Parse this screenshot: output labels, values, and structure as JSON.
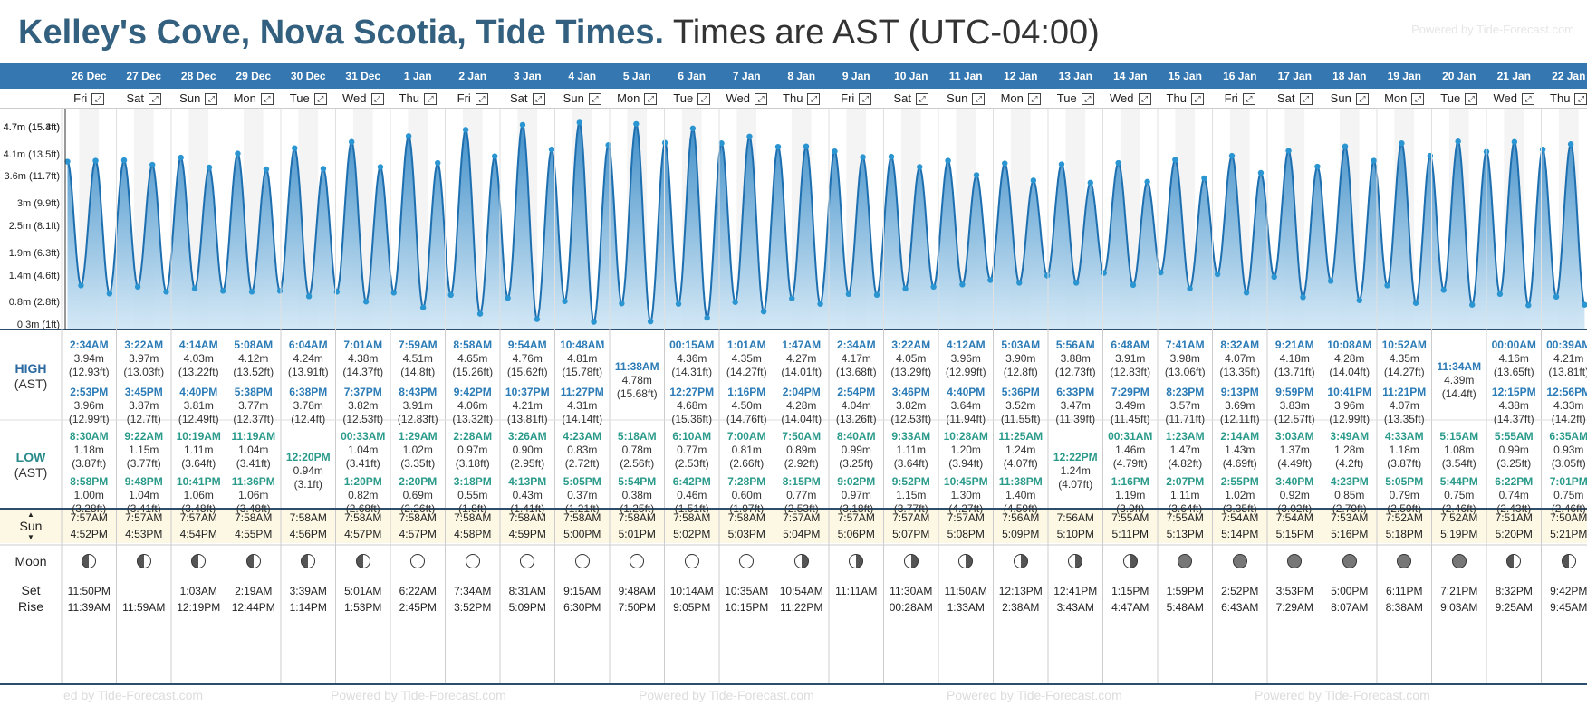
{
  "title": {
    "bold": "Kelley's Cove, Nova Scotia, Tide Times.",
    "normal": "Times are AST (UTC-04:00)"
  },
  "powered": "Powered by Tide-Forecast.com",
  "powered_bottom": "Powered by Tide-Forecast.com",
  "powered_bottom_partial": "ed by Tide-Forecast.com",
  "labels": {
    "high": "HIGH",
    "low": "LOW",
    "ast": "(AST)",
    "sun": "Sun",
    "moon": "Moon",
    "set": "Set",
    "rise": "Rise"
  },
  "colors": {
    "header_bg": "#3577b0",
    "tide_fill": "#3f8ec8",
    "tide_line": "#1d6fb0",
    "point": "#2a95d0",
    "sun_bg": "#fdf8e4",
    "title": "#34607f"
  },
  "y_axis": [
    "4.7m (15.4ft)",
    "4.7m (15.3ft)",
    "4.1m (13.5ft)",
    "3.6m (11.7ft)",
    "3m (9.9ft)",
    "2.5m (8.1ft)",
    "1.9m (6.3ft)",
    "1.4m (4.6ft)",
    "0.8m (2.8ft)",
    "0.3m (1ft)"
  ],
  "days": [
    {
      "date": "26 Dec",
      "dow": "Fri",
      "high": [
        [
          "2:34AM",
          "3.94m",
          "(12.93ft)"
        ],
        [
          "2:53PM",
          "3.96m",
          "(12.99ft)"
        ]
      ],
      "low": [
        [
          "8:30AM",
          "1.18m",
          "(3.87ft)"
        ],
        [
          "8:58PM",
          "1.00m",
          "(3.28ft)"
        ]
      ],
      "sunrise": "7:57AM",
      "sunset": "4:52PM",
      "moon_phase": "waxing",
      "moon": [
        "11:50PM",
        "11:39AM"
      ]
    },
    {
      "date": "27 Dec",
      "dow": "Sat",
      "high": [
        [
          "3:22AM",
          "3.97m",
          "(13.03ft)"
        ],
        [
          "3:45PM",
          "3.87m",
          "(12.7ft)"
        ]
      ],
      "low": [
        [
          "9:22AM",
          "1.15m",
          "(3.77ft)"
        ],
        [
          "9:48PM",
          "1.04m",
          "(3.41ft)"
        ]
      ],
      "sunrise": "7:57AM",
      "sunset": "4:53PM",
      "moon_phase": "waxing",
      "moon": [
        "",
        "11:59AM"
      ]
    },
    {
      "date": "28 Dec",
      "dow": "Sun",
      "high": [
        [
          "4:14AM",
          "4.03m",
          "(13.22ft)"
        ],
        [
          "4:40PM",
          "3.81m",
          "(12.49ft)"
        ]
      ],
      "low": [
        [
          "10:19AM",
          "1.11m",
          "(3.64ft)"
        ],
        [
          "10:41PM",
          "1.06m",
          "(3.48ft)"
        ]
      ],
      "sunrise": "7:57AM",
      "sunset": "4:54PM",
      "moon_phase": "waxing",
      "moon": [
        "1:03AM",
        "12:19PM"
      ]
    },
    {
      "date": "29 Dec",
      "dow": "Mon",
      "high": [
        [
          "5:08AM",
          "4.12m",
          "(13.52ft)"
        ],
        [
          "5:38PM",
          "3.77m",
          "(12.37ft)"
        ]
      ],
      "low": [
        [
          "11:19AM",
          "1.04m",
          "(3.41ft)"
        ],
        [
          "11:36PM",
          "1.06m",
          "(3.48ft)"
        ]
      ],
      "sunrise": "7:58AM",
      "sunset": "4:55PM",
      "moon_phase": "waxing",
      "moon": [
        "2:19AM",
        "12:44PM"
      ]
    },
    {
      "date": "30 Dec",
      "dow": "Tue",
      "high": [
        [
          "6:04AM",
          "4.24m",
          "(13.91ft)"
        ],
        [
          "6:38PM",
          "3.78m",
          "(12.4ft)"
        ]
      ],
      "low": [
        [
          "12:20PM",
          "0.94m",
          "(3.1ft)"
        ]
      ],
      "sunrise": "7:58AM",
      "sunset": "4:56PM",
      "moon_phase": "waxing",
      "moon": [
        "3:39AM",
        "1:14PM"
      ]
    },
    {
      "date": "31 Dec",
      "dow": "Wed",
      "high": [
        [
          "7:01AM",
          "4.38m",
          "(14.37ft)"
        ],
        [
          "7:37PM",
          "3.82m",
          "(12.53ft)"
        ]
      ],
      "low": [
        [
          "00:33AM",
          "1.04m",
          "(3.41ft)"
        ],
        [
          "1:20PM",
          "0.82m",
          "(2.68ft)"
        ]
      ],
      "sunrise": "7:58AM",
      "sunset": "4:57PM",
      "moon_phase": "waxing",
      "moon": [
        "5:01AM",
        "1:53PM"
      ]
    },
    {
      "date": "1 Jan",
      "dow": "Thu",
      "high": [
        [
          "7:59AM",
          "4.51m",
          "(14.8ft)"
        ],
        [
          "8:43PM",
          "3.91m",
          "(12.83ft)"
        ]
      ],
      "low": [
        [
          "1:29AM",
          "1.02m",
          "(3.35ft)"
        ],
        [
          "2:20PM",
          "0.69m",
          "(2.26ft)"
        ]
      ],
      "sunrise": "7:58AM",
      "sunset": "4:57PM",
      "moon_phase": "full",
      "moon": [
        "6:22AM",
        "2:45PM"
      ]
    },
    {
      "date": "2 Jan",
      "dow": "Fri",
      "high": [
        [
          "8:58AM",
          "4.65m",
          "(15.26ft)"
        ],
        [
          "9:42PM",
          "4.06m",
          "(13.32ft)"
        ]
      ],
      "low": [
        [
          "2:28AM",
          "0.97m",
          "(3.18ft)"
        ],
        [
          "3:18PM",
          "0.55m",
          "(1.8ft)"
        ]
      ],
      "sunrise": "7:58AM",
      "sunset": "4:58PM",
      "moon_phase": "full",
      "moon": [
        "7:34AM",
        "3:52PM"
      ]
    },
    {
      "date": "3 Jan",
      "dow": "Sat",
      "high": [
        [
          "9:54AM",
          "4.76m",
          "(15.62ft)"
        ],
        [
          "10:37PM",
          "4.21m",
          "(13.81ft)"
        ]
      ],
      "low": [
        [
          "3:26AM",
          "0.90m",
          "(2.95ft)"
        ],
        [
          "4:13PM",
          "0.43m",
          "(1.41ft)"
        ]
      ],
      "sunrise": "7:58AM",
      "sunset": "4:59PM",
      "moon_phase": "full",
      "moon": [
        "8:31AM",
        "5:09PM"
      ]
    },
    {
      "date": "4 Jan",
      "dow": "Sun",
      "high": [
        [
          "10:48AM",
          "4.81m",
          "(15.78ft)"
        ],
        [
          "11:27PM",
          "4.31m",
          "(14.14ft)"
        ]
      ],
      "low": [
        [
          "4:23AM",
          "0.83m",
          "(2.72ft)"
        ],
        [
          "5:05PM",
          "0.37m",
          "(1.21ft)"
        ]
      ],
      "sunrise": "7:58AM",
      "sunset": "5:00PM",
      "moon_phase": "full",
      "moon": [
        "9:15AM",
        "6:30PM"
      ]
    },
    {
      "date": "5 Jan",
      "dow": "Mon",
      "high": [
        [
          "11:38AM",
          "4.78m",
          "(15.68ft)"
        ]
      ],
      "low": [
        [
          "5:18AM",
          "0.78m",
          "(2.56ft)"
        ],
        [
          "5:54PM",
          "0.38m",
          "(1.25ft)"
        ]
      ],
      "sunrise": "7:58AM",
      "sunset": "5:01PM",
      "moon_phase": "full",
      "moon": [
        "9:48AM",
        "7:50PM"
      ]
    },
    {
      "date": "6 Jan",
      "dow": "Tue",
      "high": [
        [
          "00:15AM",
          "4.36m",
          "(14.31ft)"
        ],
        [
          "12:27PM",
          "4.68m",
          "(15.36ft)"
        ]
      ],
      "low": [
        [
          "6:10AM",
          "0.77m",
          "(2.53ft)"
        ],
        [
          "6:42PM",
          "0.46m",
          "(1.51ft)"
        ]
      ],
      "sunrise": "7:58AM",
      "sunset": "5:02PM",
      "moon_phase": "full",
      "moon": [
        "10:14AM",
        "9:05PM"
      ]
    },
    {
      "date": "7 Jan",
      "dow": "Wed",
      "high": [
        [
          "1:01AM",
          "4.35m",
          "(14.27ft)"
        ],
        [
          "1:16PM",
          "4.50m",
          "(14.76ft)"
        ]
      ],
      "low": [
        [
          "7:00AM",
          "0.81m",
          "(2.66ft)"
        ],
        [
          "7:28PM",
          "0.60m",
          "(1.97ft)"
        ]
      ],
      "sunrise": "7:58AM",
      "sunset": "5:03PM",
      "moon_phase": "full",
      "moon": [
        "10:35AM",
        "10:15PM"
      ]
    },
    {
      "date": "8 Jan",
      "dow": "Thu",
      "high": [
        [
          "1:47AM",
          "4.27m",
          "(14.01ft)"
        ],
        [
          "2:04PM",
          "4.28m",
          "(14.04ft)"
        ]
      ],
      "low": [
        [
          "7:50AM",
          "0.89m",
          "(2.92ft)"
        ],
        [
          "8:15PM",
          "0.77m",
          "(2.53ft)"
        ]
      ],
      "sunrise": "7:57AM",
      "sunset": "5:04PM",
      "moon_phase": "waning",
      "moon": [
        "10:54AM",
        "11:22PM"
      ]
    },
    {
      "date": "9 Jan",
      "dow": "Fri",
      "high": [
        [
          "2:34AM",
          "4.17m",
          "(13.68ft)"
        ],
        [
          "2:54PM",
          "4.04m",
          "(13.26ft)"
        ]
      ],
      "low": [
        [
          "8:40AM",
          "0.99m",
          "(3.25ft)"
        ],
        [
          "9:02PM",
          "0.97m",
          "(3.18ft)"
        ]
      ],
      "sunrise": "7:57AM",
      "sunset": "5:06PM",
      "moon_phase": "waning",
      "moon": [
        "11:11AM",
        ""
      ]
    },
    {
      "date": "10 Jan",
      "dow": "Sat",
      "high": [
        [
          "3:22AM",
          "4.05m",
          "(13.29ft)"
        ],
        [
          "3:46PM",
          "3.82m",
          "(12.53ft)"
        ]
      ],
      "low": [
        [
          "9:33AM",
          "1.11m",
          "(3.64ft)"
        ],
        [
          "9:52PM",
          "1.15m",
          "(3.77ft)"
        ]
      ],
      "sunrise": "7:57AM",
      "sunset": "5:07PM",
      "moon_phase": "waning",
      "moon": [
        "11:30AM",
        "00:28AM"
      ]
    },
    {
      "date": "11 Jan",
      "dow": "Sun",
      "high": [
        [
          "4:12AM",
          "3.96m",
          "(12.99ft)"
        ],
        [
          "4:40PM",
          "3.64m",
          "(11.94ft)"
        ]
      ],
      "low": [
        [
          "10:28AM",
          "1.20m",
          "(3.94ft)"
        ],
        [
          "10:45PM",
          "1.30m",
          "(4.27ft)"
        ]
      ],
      "sunrise": "7:57AM",
      "sunset": "5:08PM",
      "moon_phase": "waning",
      "moon": [
        "11:50AM",
        "1:33AM"
      ]
    },
    {
      "date": "12 Jan",
      "dow": "Mon",
      "high": [
        [
          "5:03AM",
          "3.90m",
          "(12.8ft)"
        ],
        [
          "5:36PM",
          "3.52m",
          "(11.55ft)"
        ]
      ],
      "low": [
        [
          "11:25AM",
          "1.24m",
          "(4.07ft)"
        ],
        [
          "11:38PM",
          "1.40m",
          "(4.59ft)"
        ]
      ],
      "sunrise": "7:56AM",
      "sunset": "5:09PM",
      "moon_phase": "waning",
      "moon": [
        "12:13PM",
        "2:38AM"
      ]
    },
    {
      "date": "13 Jan",
      "dow": "Tue",
      "high": [
        [
          "5:56AM",
          "3.88m",
          "(12.73ft)"
        ],
        [
          "6:33PM",
          "3.47m",
          "(11.39ft)"
        ]
      ],
      "low": [
        [
          "12:22PM",
          "1.24m",
          "(4.07ft)"
        ]
      ],
      "sunrise": "7:56AM",
      "sunset": "5:10PM",
      "moon_phase": "waning",
      "moon": [
        "12:41PM",
        "3:43AM"
      ]
    },
    {
      "date": "14 Jan",
      "dow": "Wed",
      "high": [
        [
          "6:48AM",
          "3.91m",
          "(12.83ft)"
        ],
        [
          "7:29PM",
          "3.49m",
          "(11.45ft)"
        ]
      ],
      "low": [
        [
          "00:31AM",
          "1.46m",
          "(4.79ft)"
        ],
        [
          "1:16PM",
          "1.19m",
          "(3.9ft)"
        ]
      ],
      "sunrise": "7:55AM",
      "sunset": "5:11PM",
      "moon_phase": "waning",
      "moon": [
        "1:15PM",
        "4:47AM"
      ]
    },
    {
      "date": "15 Jan",
      "dow": "Thu",
      "high": [
        [
          "7:41AM",
          "3.98m",
          "(13.06ft)"
        ],
        [
          "8:23PM",
          "3.57m",
          "(11.71ft)"
        ]
      ],
      "low": [
        [
          "1:23AM",
          "1.47m",
          "(4.82ft)"
        ],
        [
          "2:07PM",
          "1.11m",
          "(3.64ft)"
        ]
      ],
      "sunrise": "7:55AM",
      "sunset": "5:13PM",
      "moon_phase": "new",
      "moon": [
        "1:59PM",
        "5:48AM"
      ]
    },
    {
      "date": "16 Jan",
      "dow": "Fri",
      "high": [
        [
          "8:32AM",
          "4.07m",
          "(13.35ft)"
        ],
        [
          "9:13PM",
          "3.69m",
          "(12.11ft)"
        ]
      ],
      "low": [
        [
          "2:14AM",
          "1.43m",
          "(4.69ft)"
        ],
        [
          "2:55PM",
          "1.02m",
          "(3.35ft)"
        ]
      ],
      "sunrise": "7:54AM",
      "sunset": "5:14PM",
      "moon_phase": "new",
      "moon": [
        "2:52PM",
        "6:43AM"
      ]
    },
    {
      "date": "17 Jan",
      "dow": "Sat",
      "high": [
        [
          "9:21AM",
          "4.18m",
          "(13.71ft)"
        ],
        [
          "9:59PM",
          "3.83m",
          "(12.57ft)"
        ]
      ],
      "low": [
        [
          "3:03AM",
          "1.37m",
          "(4.49ft)"
        ],
        [
          "3:40PM",
          "0.92m",
          "(3.02ft)"
        ]
      ],
      "sunrise": "7:54AM",
      "sunset": "5:15PM",
      "moon_phase": "new",
      "moon": [
        "3:53PM",
        "7:29AM"
      ]
    },
    {
      "date": "18 Jan",
      "dow": "Sun",
      "high": [
        [
          "10:08AM",
          "4.28m",
          "(14.04ft)"
        ],
        [
          "10:41PM",
          "3.96m",
          "(12.99ft)"
        ]
      ],
      "low": [
        [
          "3:49AM",
          "1.28m",
          "(4.2ft)"
        ],
        [
          "4:23PM",
          "0.85m",
          "(2.79ft)"
        ]
      ],
      "sunrise": "7:53AM",
      "sunset": "5:16PM",
      "moon_phase": "new",
      "moon": [
        "5:00PM",
        "8:07AM"
      ]
    },
    {
      "date": "19 Jan",
      "dow": "Mon",
      "high": [
        [
          "10:52AM",
          "4.35m",
          "(14.27ft)"
        ],
        [
          "11:21PM",
          "4.07m",
          "(13.35ft)"
        ]
      ],
      "low": [
        [
          "4:33AM",
          "1.18m",
          "(3.87ft)"
        ],
        [
          "5:05PM",
          "0.79m",
          "(2.59ft)"
        ]
      ],
      "sunrise": "7:52AM",
      "sunset": "5:18PM",
      "moon_phase": "new",
      "moon": [
        "6:11PM",
        "8:38AM"
      ]
    },
    {
      "date": "20 Jan",
      "dow": "Tue",
      "high": [
        [
          "11:34AM",
          "4.39m",
          "(14.4ft)"
        ]
      ],
      "low": [
        [
          "5:15AM",
          "1.08m",
          "(3.54ft)"
        ],
        [
          "5:44PM",
          "0.75m",
          "(2.46ft)"
        ]
      ],
      "sunrise": "7:52AM",
      "sunset": "5:19PM",
      "moon_phase": "new",
      "moon": [
        "7:21PM",
        "9:03AM"
      ]
    },
    {
      "date": "21 Jan",
      "dow": "Wed",
      "high": [
        [
          "00:00AM",
          "4.16m",
          "(13.65ft)"
        ],
        [
          "12:15PM",
          "4.38m",
          "(14.37ft)"
        ]
      ],
      "low": [
        [
          "5:55AM",
          "0.99m",
          "(3.25ft)"
        ],
        [
          "6:22PM",
          "0.74m",
          "(2.43ft)"
        ]
      ],
      "sunrise": "7:51AM",
      "sunset": "5:20PM",
      "moon_phase": "waxing",
      "moon": [
        "8:32PM",
        "9:25AM"
      ]
    },
    {
      "date": "22 Jan",
      "dow": "Thu",
      "high": [
        [
          "00:39AM",
          "4.21m",
          "(13.81ft)"
        ],
        [
          "12:56PM",
          "4.33m",
          "(14.2ft)"
        ]
      ],
      "low": [
        [
          "6:35AM",
          "0.93m",
          "(3.05ft)"
        ],
        [
          "7:01PM",
          "0.75m",
          "(2.46ft)"
        ]
      ],
      "sunrise": "7:50AM",
      "sunset": "5:21PM",
      "moon_phase": "waxing",
      "moon": [
        "9:42PM",
        "9:45AM"
      ]
    }
  ]
}
